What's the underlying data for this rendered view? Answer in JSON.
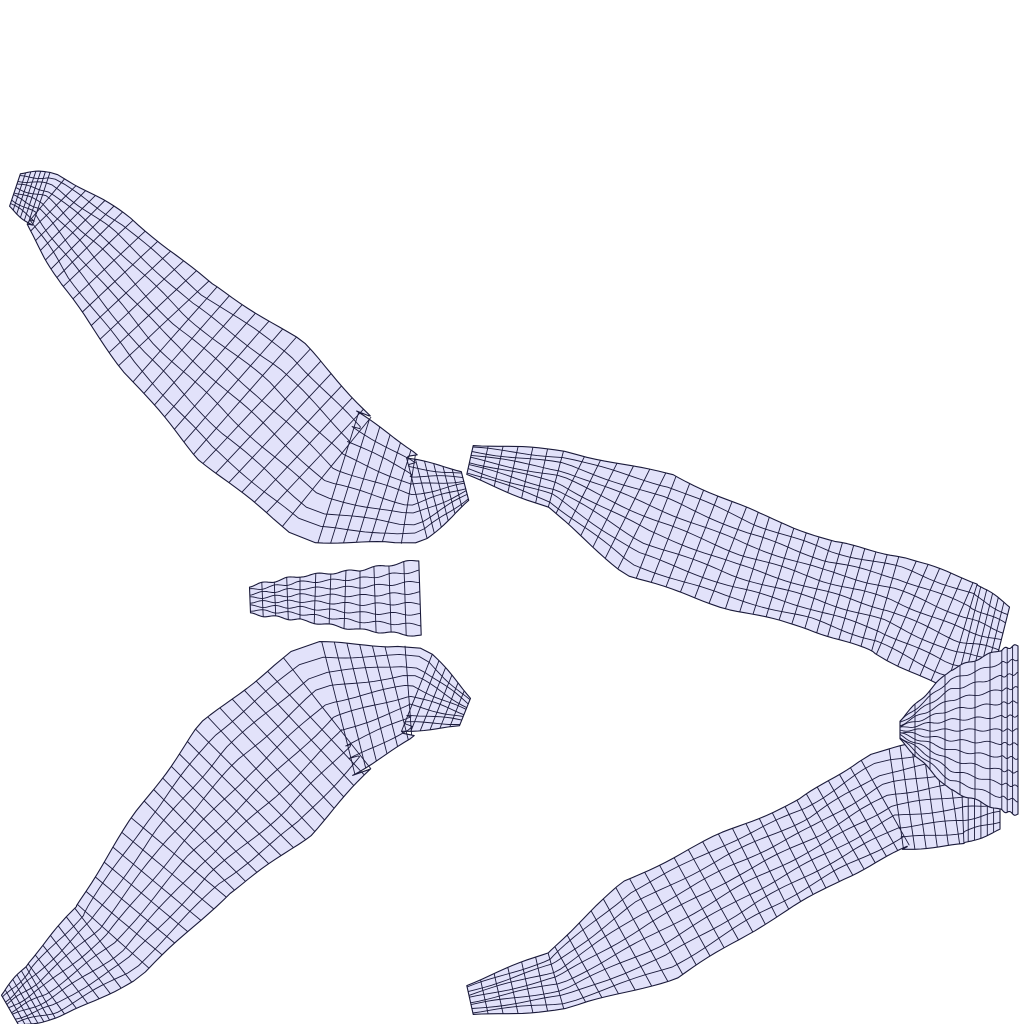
{
  "figure": {
    "meshes": [
      "left-arrow-mesh",
      "right-arrow-mesh"
    ],
    "colors": {
      "background": "#ffffff",
      "mesh_fill": "#e2e2fa",
      "mesh_line": "#1a1a3a"
    }
  }
}
